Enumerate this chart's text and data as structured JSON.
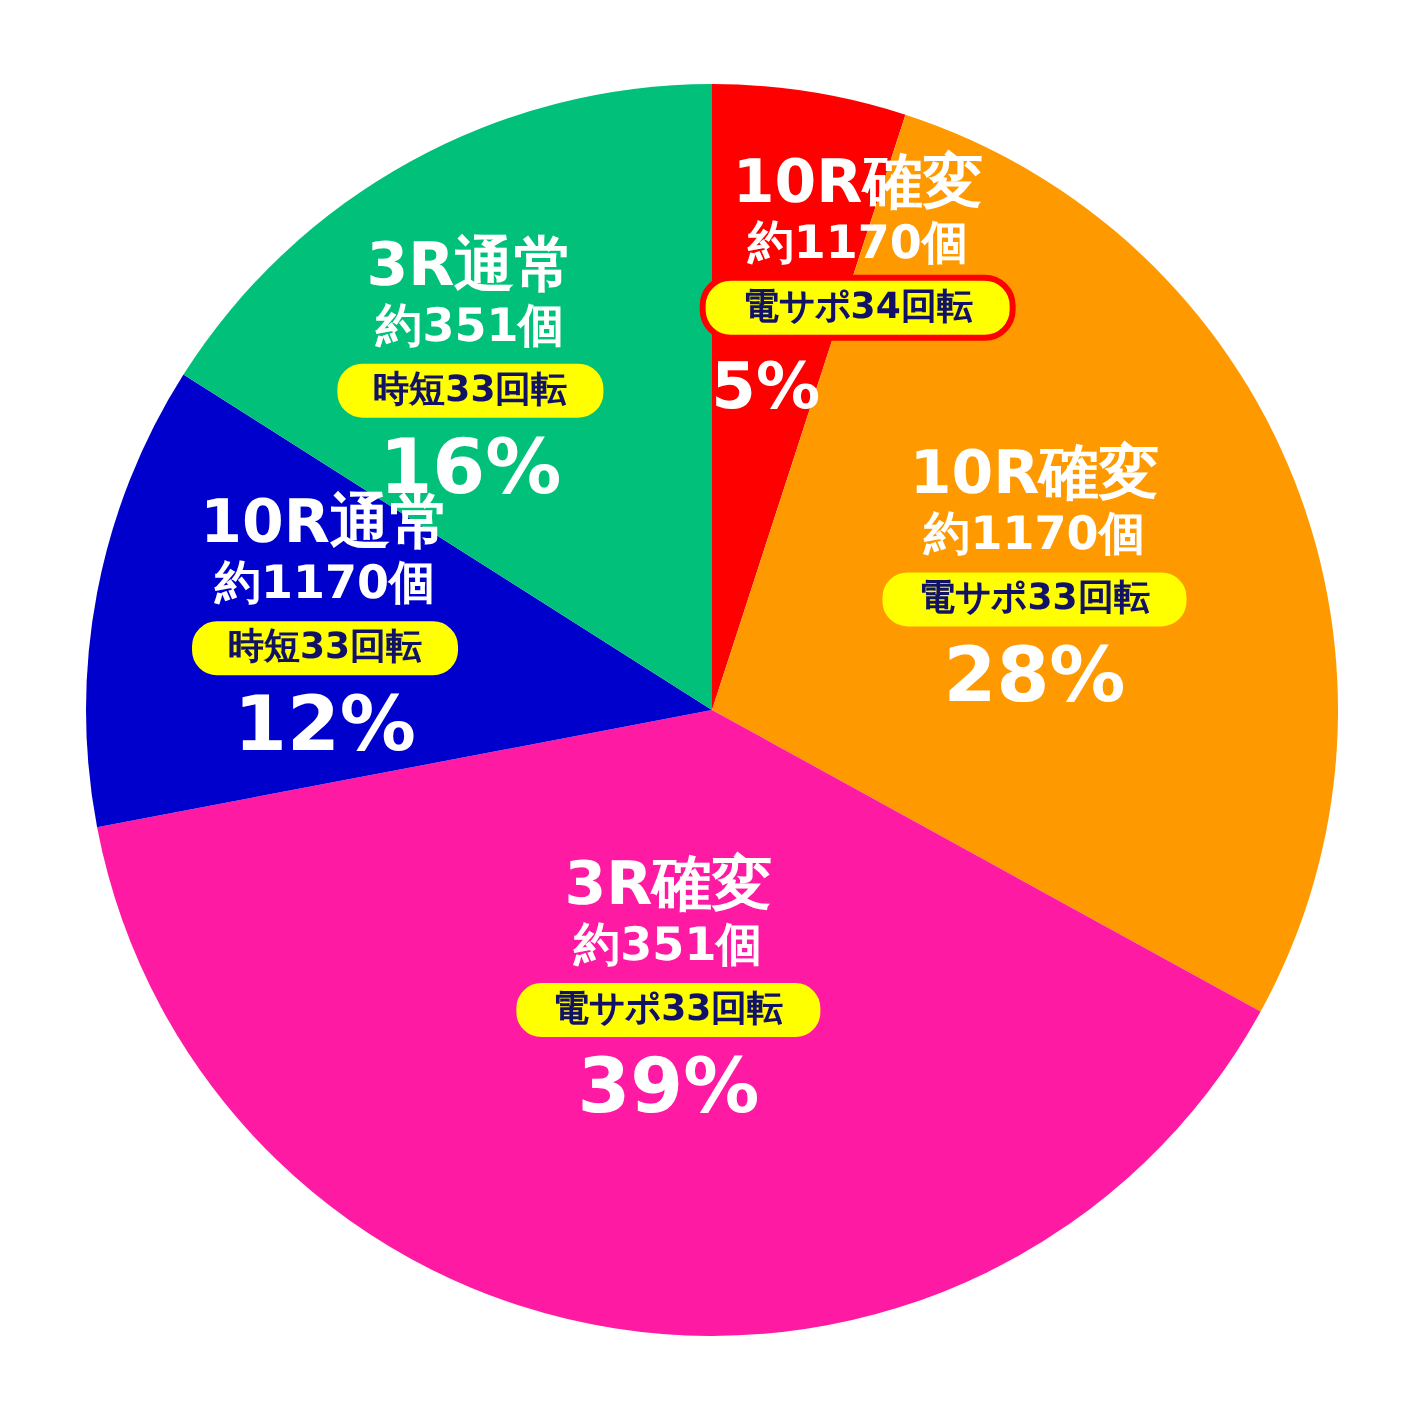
{
  "chart_data": {
    "type": "pie",
    "categories": [
      "10R確変",
      "10R確変",
      "3R確変",
      "10R通常",
      "3R通常"
    ],
    "values": [
      5,
      28,
      39,
      12,
      16
    ],
    "colors": [
      "#ff0000",
      "#ff9900",
      "#ff1aa3",
      "#0000cc",
      "#00c07a"
    ],
    "value_labels": [
      "5%",
      "28%",
      "39%",
      "12%",
      "16%"
    ],
    "annotations": [
      "約1170個",
      "電サポ34回転",
      "約1170個",
      "電サポ33回転",
      "約351個",
      "電サポ33回転",
      "約1170個",
      "時短33回転",
      "約351個",
      "時短33回転"
    ]
  }
}
